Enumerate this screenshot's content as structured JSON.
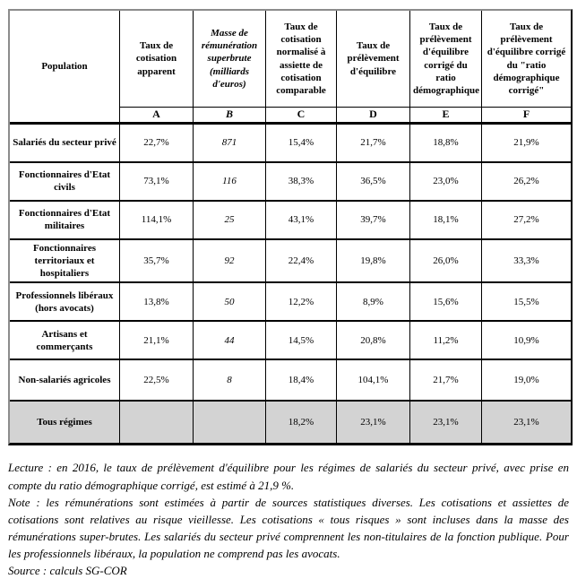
{
  "colors": {
    "highlight_row": "#d3d3d3",
    "border": "#000000",
    "outer_border_light": "#8c8c8c"
  },
  "table": {
    "population_header": "Population",
    "columns": [
      {
        "letter": "A",
        "label": "Taux de cotisation apparent",
        "italic": false
      },
      {
        "letter": "B",
        "label": "Masse de rémunération superbrute (milliards d'euros)",
        "italic": true
      },
      {
        "letter": "C",
        "label": "Taux de cotisation normalisé à assiette de cotisation comparable",
        "italic": false
      },
      {
        "letter": "D",
        "label": "Taux de prélèvement d'équilibre",
        "italic": false
      },
      {
        "letter": "E",
        "label": "Taux de prélèvement d'équilibre corrigé du ratio démographique",
        "italic": false
      },
      {
        "letter": "F",
        "label": "Taux de prélèvement d'équilibre corrigé du \"ratio démographique corrigé\"",
        "italic": false
      }
    ],
    "rows": [
      {
        "label": "Salariés du secteur privé",
        "values": [
          "22,7%",
          "871",
          "15,4%",
          "21,7%",
          "18,8%",
          "21,9%"
        ],
        "highlight": false
      },
      {
        "label": "Fonctionnaires d'Etat civils",
        "values": [
          "73,1%",
          "116",
          "38,3%",
          "36,5%",
          "23,0%",
          "26,2%"
        ],
        "highlight": false
      },
      {
        "label": "Fonctionnaires d'Etat militaires",
        "values": [
          "114,1%",
          "25",
          "43,1%",
          "39,7%",
          "18,1%",
          "27,2%"
        ],
        "highlight": false
      },
      {
        "label": "Fonctionnaires territoriaux et hospitaliers",
        "values": [
          "35,7%",
          "92",
          "22,4%",
          "19,8%",
          "26,0%",
          "33,3%"
        ],
        "highlight": false,
        "tall": true
      },
      {
        "label": "Professionnels libéraux (hors avocats)",
        "values": [
          "13,8%",
          "50",
          "12,2%",
          "8,9%",
          "15,6%",
          "15,5%"
        ],
        "highlight": false
      },
      {
        "label": "Artisans et commerçants",
        "values": [
          "21,1%",
          "44",
          "14,5%",
          "20,8%",
          "11,2%",
          "10,9%"
        ],
        "highlight": false
      },
      {
        "label": "Non-salariés agricoles",
        "values": [
          "22,5%",
          "8",
          "18,4%",
          "104,1%",
          "21,7%",
          "19,0%"
        ],
        "highlight": false,
        "tall": true
      },
      {
        "label": "Tous régimes",
        "values": [
          "",
          "",
          "18,2%",
          "23,1%",
          "23,1%",
          "23,1%"
        ],
        "highlight": true,
        "tall": true
      }
    ]
  },
  "notes": {
    "lecture": "Lecture : en 2016, le taux de prélèvement d'équilibre pour les régimes de salariés du secteur privé, avec prise en compte du ratio démographique corrigé, est estimé à 21,9 %.",
    "note": "Note : les rémunérations sont estimées à partir de sources statistiques diverses. Les cotisations et assiettes de cotisations sont relatives au risque vieillesse. Les cotisations « tous risques » sont incluses dans la masse des rémunérations super-brutes. Les salariés du secteur privé comprennent les non-titulaires de la fonction publique. Pour les professionnels libéraux, la population ne comprend pas les avocats.",
    "source": "Source : calculs SG-COR"
  }
}
